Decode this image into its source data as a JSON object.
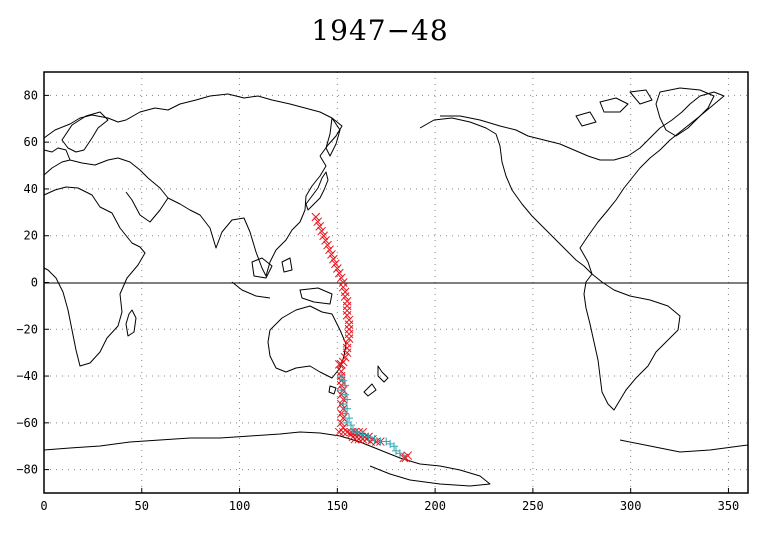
{
  "title": "1947−48",
  "chart_data": {
    "type": "scatter",
    "title": "1947−48",
    "xlabel": "",
    "ylabel": "",
    "xlim": [
      0,
      360
    ],
    "ylim": [
      -90,
      90
    ],
    "xticks": [
      0,
      50,
      100,
      150,
      200,
      250,
      300,
      350
    ],
    "yticks": [
      80,
      60,
      40,
      20,
      0,
      -20,
      -40,
      -60,
      -80
    ],
    "ytick_labels": [
      "80",
      "60",
      "40",
      "20",
      "0",
      "−20",
      "−40",
      "−60",
      "−80"
    ],
    "grid": true,
    "basemap": "world coastlines, Pacific-centered (0-360 longitude)",
    "series": [
      {
        "marker": "x",
        "color": "#e8141c",
        "points": [
          [
            139,
            28
          ],
          [
            140,
            26
          ],
          [
            141,
            24
          ],
          [
            142,
            22
          ],
          [
            143,
            20
          ],
          [
            144,
            18
          ],
          [
            145,
            16
          ],
          [
            146,
            14
          ],
          [
            147,
            12
          ],
          [
            148,
            10
          ],
          [
            149,
            8
          ],
          [
            150,
            6
          ],
          [
            151,
            4
          ],
          [
            152,
            2
          ],
          [
            153,
            0
          ],
          [
            153,
            -2
          ],
          [
            154,
            -4
          ],
          [
            154,
            -6
          ],
          [
            155,
            -8
          ],
          [
            155,
            -10
          ],
          [
            155,
            -12
          ],
          [
            155,
            -14
          ],
          [
            156,
            -16
          ],
          [
            156,
            -18
          ],
          [
            156,
            -20
          ],
          [
            156,
            -22
          ],
          [
            156,
            -24
          ],
          [
            155,
            -26
          ],
          [
            155,
            -28
          ],
          [
            155,
            -30
          ],
          [
            154,
            -32
          ],
          [
            153,
            -34
          ],
          [
            152,
            -35
          ],
          [
            151,
            -35
          ],
          [
            152,
            -38
          ],
          [
            152,
            -40
          ],
          [
            152,
            -42
          ],
          [
            152,
            -44
          ],
          [
            153,
            -46
          ],
          [
            152,
            -48
          ],
          [
            153,
            -50
          ],
          [
            152,
            -52
          ],
          [
            153,
            -54
          ],
          [
            152,
            -56
          ],
          [
            153,
            -58
          ],
          [
            152,
            -60
          ],
          [
            153,
            -62
          ],
          [
            151,
            -64
          ],
          [
            153,
            -64
          ],
          [
            155,
            -64
          ],
          [
            157,
            -64
          ],
          [
            159,
            -64
          ],
          [
            161,
            -64
          ],
          [
            163,
            -64
          ],
          [
            157,
            -65
          ],
          [
            158,
            -66
          ],
          [
            160,
            -66
          ],
          [
            162,
            -66
          ],
          [
            164,
            -66
          ],
          [
            166,
            -66
          ],
          [
            168,
            -67
          ],
          [
            159,
            -67
          ],
          [
            161,
            -67
          ],
          [
            163,
            -67
          ],
          [
            165,
            -67
          ],
          [
            167,
            -68
          ],
          [
            170,
            -68
          ],
          [
            172,
            -68
          ],
          [
            184,
            -75
          ],
          [
            185,
            -75
          ],
          [
            186,
            -74
          ]
        ]
      },
      {
        "marker": "+",
        "color": "#2aa6b4",
        "points": [
          [
            152,
            -40
          ],
          [
            153,
            -42
          ],
          [
            154,
            -44
          ],
          [
            152,
            -46
          ],
          [
            154,
            -48
          ],
          [
            155,
            -50
          ],
          [
            153,
            -52
          ],
          [
            155,
            -54
          ],
          [
            154,
            -56
          ],
          [
            156,
            -58
          ],
          [
            155,
            -60
          ],
          [
            157,
            -61
          ],
          [
            158,
            -63
          ],
          [
            160,
            -64
          ],
          [
            163,
            -65
          ],
          [
            166,
            -66
          ],
          [
            169,
            -67
          ],
          [
            172,
            -68
          ],
          [
            175,
            -68
          ],
          [
            177,
            -69
          ],
          [
            179,
            -70
          ],
          [
            180,
            -72
          ],
          [
            182,
            -73
          ],
          [
            184,
            -74
          ]
        ]
      }
    ]
  },
  "icons": {
    "x_marker": "cross-x",
    "plus_marker": "cross-plus"
  }
}
